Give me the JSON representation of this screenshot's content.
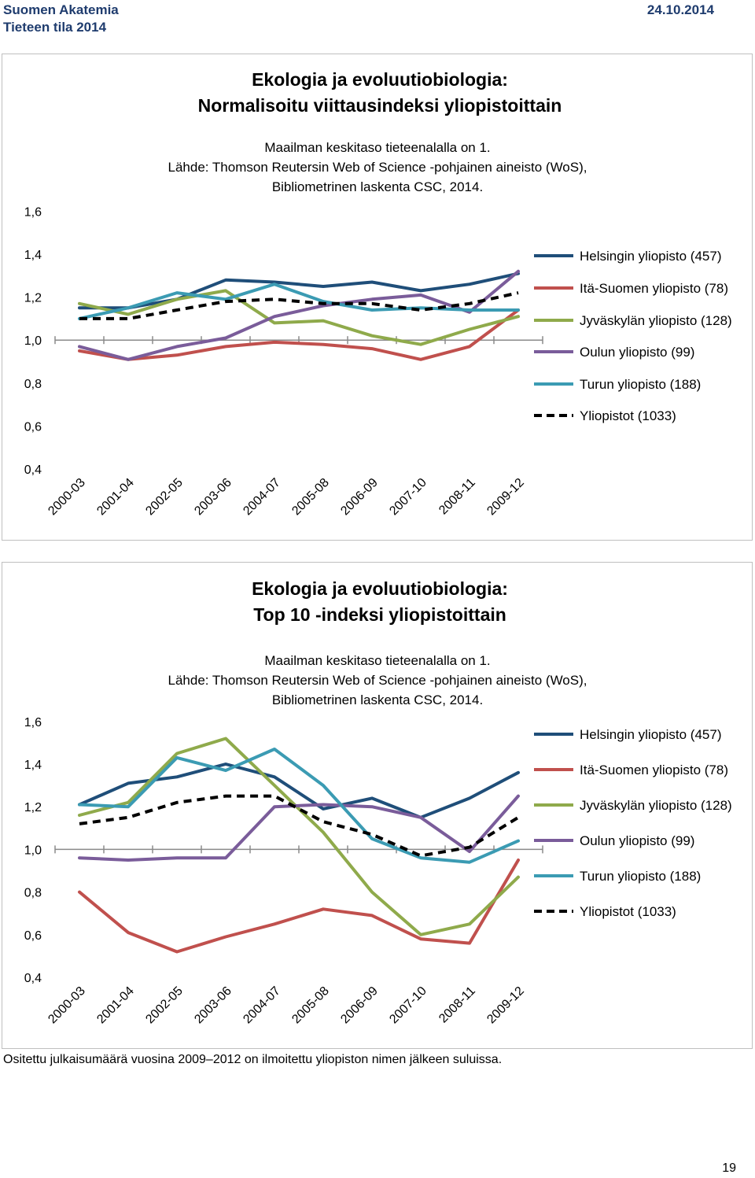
{
  "header": {
    "org": "Suomen Akatemia",
    "report": "Tieteen tila 2014",
    "date": "24.10.2014"
  },
  "footnote": "Ositettu julkaisumäärä vuosina 2009–2012 on ilmoitettu yliopiston nimen jälkeen suluissa.",
  "page_number": "19",
  "colors": {
    "helsinki": "#1f4e79",
    "ita_suomi": "#c0504d",
    "jyvaskyla": "#8faa4b",
    "oulu": "#7a5c9a",
    "turku": "#3b9bb3",
    "yliopistot": "#000000"
  },
  "chart_data": [
    {
      "type": "line",
      "title": "Ekologia ja evoluutiobiologia:",
      "subtitle": "Normalisoitu viittausindeksi yliopistoittain",
      "notes": [
        "Maailman keskitaso tieteenalalla on 1.",
        "Lähde: Thomson Reutersin Web of Science -pohjainen aineisto (WoS),",
        "Bibliometrinen laskenta CSC, 2014."
      ],
      "categories": [
        "2000-03",
        "2001-04",
        "2002-05",
        "2003-06",
        "2004-07",
        "2005-08",
        "2006-09",
        "2007-10",
        "2008-11",
        "2009-12"
      ],
      "ylim": [
        0.4,
        1.6
      ],
      "yticks": [
        "0,4",
        "0,6",
        "0,8",
        "1,0",
        "1,2",
        "1,4",
        "1,6"
      ],
      "legend_position": "right",
      "series": [
        {
          "name": "Helsingin yliopisto (457)",
          "color_key": "helsinki",
          "values": [
            1.15,
            1.15,
            1.19,
            1.28,
            1.27,
            1.25,
            1.27,
            1.23,
            1.26,
            1.31
          ]
        },
        {
          "name": "Itä-Suomen yliopisto (78)",
          "color_key": "ita_suomi",
          "values": [
            0.95,
            0.91,
            0.93,
            0.97,
            0.99,
            0.98,
            0.96,
            0.91,
            0.97,
            1.14
          ]
        },
        {
          "name": "Jyväskylän yliopisto (128)",
          "color_key": "jyvaskyla",
          "values": [
            1.17,
            1.12,
            1.19,
            1.23,
            1.08,
            1.09,
            1.02,
            0.98,
            1.05,
            1.11
          ]
        },
        {
          "name": "Oulun yliopisto (99)",
          "color_key": "oulu",
          "values": [
            0.97,
            0.91,
            0.97,
            1.01,
            1.11,
            1.16,
            1.19,
            1.21,
            1.13,
            1.32
          ]
        },
        {
          "name": "Turun yliopisto (188)",
          "color_key": "turku",
          "values": [
            1.1,
            1.15,
            1.22,
            1.19,
            1.26,
            1.18,
            1.14,
            1.15,
            1.14,
            1.14
          ]
        },
        {
          "name": "Yliopistot (1033)",
          "color_key": "yliopistot",
          "dashed": true,
          "values": [
            1.1,
            1.1,
            1.14,
            1.18,
            1.19,
            1.17,
            1.17,
            1.14,
            1.17,
            1.22
          ]
        }
      ]
    },
    {
      "type": "line",
      "title": "Ekologia ja evoluutiobiologia:",
      "subtitle": "Top 10 -indeksi yliopistoittain",
      "notes": [
        "Maailman keskitaso tieteenalalla on 1.",
        "Lähde: Thomson Reutersin Web of Science -pohjainen aineisto (WoS),",
        "Bibliometrinen laskenta CSC, 2014."
      ],
      "categories": [
        "2000-03",
        "2001-04",
        "2002-05",
        "2003-06",
        "2004-07",
        "2005-08",
        "2006-09",
        "2007-10",
        "2008-11",
        "2009-12"
      ],
      "ylim": [
        0.4,
        1.6
      ],
      "yticks": [
        "0,4",
        "0,6",
        "0,8",
        "1,0",
        "1,2",
        "1,4",
        "1,6"
      ],
      "legend_position": "right",
      "series": [
        {
          "name": "Helsingin yliopisto (457)",
          "color_key": "helsinki",
          "values": [
            1.21,
            1.31,
            1.34,
            1.4,
            1.34,
            1.19,
            1.24,
            1.15,
            1.24,
            1.36
          ]
        },
        {
          "name": "Itä-Suomen yliopisto (78)",
          "color_key": "ita_suomi",
          "values": [
            0.8,
            0.61,
            0.52,
            0.59,
            0.65,
            0.72,
            0.69,
            0.58,
            0.56,
            0.95
          ]
        },
        {
          "name": "Jyväskylän yliopisto (128)",
          "color_key": "jyvaskyla",
          "values": [
            1.16,
            1.22,
            1.45,
            1.52,
            1.3,
            1.08,
            0.8,
            0.6,
            0.65,
            0.87
          ]
        },
        {
          "name": "Oulun yliopisto (99)",
          "color_key": "oulu",
          "values": [
            0.96,
            0.95,
            0.96,
            0.96,
            1.2,
            1.21,
            1.2,
            1.15,
            0.99,
            1.25
          ]
        },
        {
          "name": "Turun yliopisto (188)",
          "color_key": "turku",
          "values": [
            1.21,
            1.2,
            1.43,
            1.37,
            1.47,
            1.3,
            1.05,
            0.96,
            0.94,
            1.04
          ]
        },
        {
          "name": "Yliopistot (1033)",
          "color_key": "yliopistot",
          "dashed": true,
          "values": [
            1.12,
            1.15,
            1.22,
            1.25,
            1.25,
            1.13,
            1.07,
            0.97,
            1.01,
            1.15
          ]
        }
      ]
    }
  ]
}
